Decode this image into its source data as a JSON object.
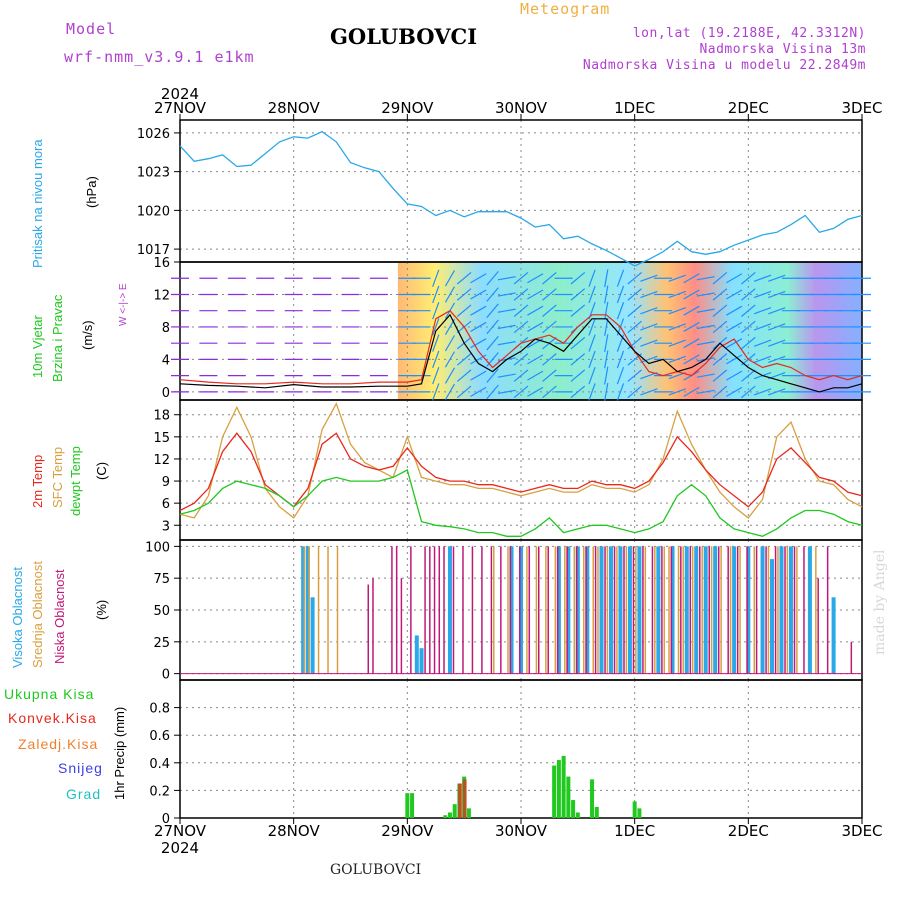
{
  "header": {
    "model_label": "Model",
    "model_name": "wrf-nmm_v3.9.1  e1km",
    "station": "GOLUBOVCI",
    "chart_kind": "Meteogram",
    "lonlat": "lon,lat (19.2188E, 42.3312N)",
    "elevation": "Nadmorska Visina 13m",
    "model_elevation": "Nadmorska Visina u modelu 22.2849m"
  },
  "time_axis": {
    "year": "2024",
    "labels": [
      "27NOV",
      "28NOV",
      "29NOV",
      "30NOV",
      "1DEC",
      "2DEC",
      "3DEC"
    ]
  },
  "footer": {
    "station": "GOLUBOVCI",
    "credit": "made by Angel"
  },
  "panel_labels": {
    "pressure": "Pritisak na nivou mora",
    "pressure_unit": "(hPa)",
    "wind_1": "10m Vjetar",
    "wind_2": "Brzina i Pravac",
    "wind_unit": "(m/s)",
    "wind_compass": "W <-|-> E",
    "temp_1": "2m Temp",
    "temp_2": "SFC Temp",
    "temp_3": "dewpt Temp",
    "temp_unit": "(C)",
    "cloud_1": "Visoka Oblacnost",
    "cloud_2": "Srednja Oblacnost",
    "cloud_3": "Niska Oblacnost",
    "cloud_unit": "(%)",
    "precip_1": "Ukupna Kisa",
    "precip_2": "Konvek.Kisa",
    "precip_3": "Zaledj.Kisa",
    "precip_4": "Snijeg",
    "precip_5": "Grad",
    "precip_unit": "1hr Precip (mm)"
  },
  "colors": {
    "pressure": "#2aa8e8",
    "wind_speed": "#000000",
    "wind_gust": "#e8281e",
    "temp_2m": "#e8281e",
    "temp_sfc": "#d8a040",
    "temp_dew": "#20c820",
    "cloud_high": "#2aa8e8",
    "cloud_mid": "#d8a040",
    "cloud_low": "#c01878",
    "precip_total": "#20c820",
    "precip_conv": "#e8281e",
    "precip_freezing": "#f08030",
    "precip_snow": "#4040e0",
    "precip_hail": "#20c0c0",
    "label_purple": "#b040d0"
  },
  "chart_data": [
    {
      "type": "line",
      "name": "pressure",
      "x": [
        0,
        3,
        6,
        9,
        12,
        15,
        18,
        21,
        24,
        27,
        30,
        33,
        36,
        39,
        42,
        45,
        48,
        51,
        54,
        57,
        60,
        63,
        66,
        69,
        72,
        75,
        78,
        81,
        84,
        87,
        90,
        93,
        96,
        99,
        102,
        105,
        108,
        111,
        114,
        117,
        120,
        123,
        126,
        129,
        132,
        135,
        138,
        141,
        144
      ],
      "values": [
        1025.0,
        1023.8,
        1024.0,
        1024.3,
        1023.4,
        1023.5,
        1024.4,
        1025.3,
        1025.7,
        1025.6,
        1026.1,
        1025.3,
        1023.7,
        1023.3,
        1023.0,
        1021.7,
        1020.5,
        1020.3,
        1019.6,
        1020.0,
        1019.5,
        1019.9,
        1019.9,
        1019.9,
        1019.4,
        1018.7,
        1018.9,
        1017.8,
        1018.0,
        1017.4,
        1016.9,
        1016.3,
        1015.7,
        1016.2,
        1016.8,
        1017.6,
        1016.8,
        1016.6,
        1016.8,
        1017.3,
        1017.7,
        1018.1,
        1018.3,
        1018.9,
        1019.6,
        1018.3,
        1018.6,
        1019.3,
        1019.6
      ],
      "xlim": [
        0,
        144
      ],
      "ylim": [
        1016,
        1027
      ],
      "yticks": [
        1017,
        1020,
        1023,
        1026
      ],
      "ylabel": "(hPa)"
    },
    {
      "type": "line",
      "name": "wind",
      "x": [
        0,
        6,
        12,
        18,
        24,
        30,
        36,
        42,
        48,
        51,
        54,
        57,
        60,
        63,
        66,
        69,
        72,
        75,
        78,
        81,
        84,
        87,
        90,
        93,
        96,
        99,
        102,
        105,
        108,
        111,
        114,
        117,
        120,
        123,
        126,
        129,
        132,
        135,
        138,
        141,
        144
      ],
      "series": [
        {
          "name": "speed",
          "values": [
            1.0,
            0.8,
            0.7,
            0.5,
            0.9,
            0.6,
            0.6,
            0.7,
            0.7,
            1.0,
            7.5,
            9.5,
            6.0,
            3.5,
            2.5,
            4.0,
            5.0,
            6.5,
            6.0,
            5.0,
            7.0,
            9.0,
            9.0,
            7.0,
            5.0,
            3.5,
            4.0,
            2.5,
            3.0,
            4.0,
            6.0,
            4.5,
            3.0,
            2.0,
            1.5,
            1.0,
            0.5,
            0.0,
            0.5,
            0.5,
            1.0
          ]
        },
        {
          "name": "gust",
          "values": [
            1.5,
            1.2,
            1.0,
            1.0,
            1.2,
            1.0,
            1.0,
            1.2,
            1.2,
            1.5,
            9.0,
            10.0,
            8.0,
            5.0,
            3.0,
            4.5,
            6.0,
            6.5,
            7.0,
            6.0,
            8.0,
            9.5,
            9.5,
            8.0,
            5.0,
            2.5,
            2.0,
            2.5,
            2.0,
            3.5,
            5.5,
            6.5,
            4.0,
            3.0,
            3.5,
            3.0,
            2.0,
            1.5,
            2.0,
            1.5,
            2.0
          ]
        }
      ],
      "direction_deg": [
        90,
        90,
        90,
        90,
        90,
        90,
        90,
        90,
        90,
        90,
        200,
        210,
        230,
        240,
        220,
        260,
        230,
        240,
        230,
        270,
        230,
        200,
        190,
        200,
        230,
        250,
        270,
        250,
        240,
        260,
        230,
        240,
        230,
        250,
        250,
        90,
        90,
        90,
        90,
        90,
        90
      ],
      "xlim": [
        0,
        144
      ],
      "ylim": [
        -1,
        16
      ],
      "yticks": [
        0,
        4,
        8,
        12,
        16
      ],
      "ylabel": "(m/s)"
    },
    {
      "type": "line",
      "name": "temperature",
      "x": [
        0,
        3,
        6,
        9,
        12,
        15,
        18,
        21,
        24,
        27,
        30,
        33,
        36,
        39,
        42,
        45,
        48,
        51,
        54,
        57,
        60,
        63,
        66,
        69,
        72,
        75,
        78,
        81,
        84,
        87,
        90,
        93,
        96,
        99,
        102,
        105,
        108,
        111,
        114,
        117,
        120,
        123,
        126,
        129,
        132,
        135,
        138,
        141,
        144
      ],
      "series": [
        {
          "name": "2m Temp",
          "values": [
            5.0,
            6.0,
            8.0,
            13.0,
            15.5,
            13.0,
            8.5,
            7.0,
            5.5,
            8.0,
            14.0,
            15.5,
            12.0,
            11.0,
            10.5,
            11.0,
            13.5,
            11.0,
            9.5,
            9.0,
            9.0,
            8.5,
            8.5,
            8.0,
            7.5,
            8.0,
            8.5,
            8.0,
            8.0,
            9.0,
            8.5,
            8.5,
            8.0,
            9.0,
            11.5,
            15.0,
            13.0,
            10.5,
            8.5,
            7.0,
            5.5,
            7.5,
            12.0,
            13.5,
            11.5,
            9.5,
            9.0,
            7.5,
            7.0
          ]
        },
        {
          "name": "SFC Temp",
          "values": [
            4.5,
            4.0,
            7.0,
            15.0,
            19.0,
            15.0,
            8.0,
            5.5,
            4.0,
            7.0,
            16.0,
            19.5,
            14.0,
            11.5,
            10.5,
            9.5,
            15.0,
            9.5,
            9.0,
            8.5,
            8.5,
            8.0,
            8.0,
            7.5,
            7.0,
            7.5,
            8.0,
            7.5,
            7.5,
            8.5,
            8.0,
            8.0,
            7.5,
            8.5,
            12.0,
            18.5,
            14.0,
            10.5,
            7.5,
            5.5,
            4.0,
            6.5,
            15.0,
            17.0,
            12.0,
            9.0,
            8.5,
            6.5,
            5.5
          ]
        },
        {
          "name": "dewpt Temp",
          "values": [
            4.5,
            5.0,
            6.0,
            8.0,
            9.0,
            8.5,
            8.0,
            7.0,
            5.5,
            7.0,
            9.0,
            9.5,
            9.0,
            9.0,
            9.0,
            9.5,
            10.5,
            3.5,
            3.0,
            2.8,
            2.5,
            2.0,
            2.0,
            1.5,
            1.5,
            2.5,
            4.0,
            2.0,
            2.5,
            3.0,
            3.0,
            2.5,
            2.0,
            2.5,
            3.5,
            7.0,
            8.5,
            7.0,
            4.0,
            2.5,
            2.0,
            1.5,
            2.5,
            4.0,
            5.0,
            5.0,
            4.5,
            3.5,
            3.0
          ]
        }
      ],
      "xlim": [
        0,
        144
      ],
      "ylim": [
        1,
        20
      ],
      "yticks": [
        3,
        6,
        9,
        12,
        15,
        18
      ],
      "ylabel": "(C)"
    },
    {
      "type": "bar",
      "name": "cloud",
      "series": [
        {
          "name": "Visoka Oblacnost",
          "x": [
            26,
            27,
            28,
            50,
            51,
            57,
            70,
            72,
            80,
            82,
            84,
            86,
            89,
            91,
            93,
            95,
            97,
            101,
            104,
            107,
            109,
            111,
            113,
            117,
            120,
            123,
            125,
            127,
            129,
            133,
            138
          ],
          "values": [
            100,
            100,
            60,
            30,
            20,
            100,
            100,
            100,
            100,
            100,
            100,
            100,
            100,
            100,
            100,
            100,
            100,
            100,
            100,
            100,
            100,
            100,
            100,
            100,
            100,
            100,
            90,
            100,
            100,
            100,
            60
          ]
        },
        {
          "name": "Srednja Oblacnost",
          "x": [
            26,
            27,
            29,
            31,
            33,
            66,
            69,
            73,
            75,
            77,
            79,
            81,
            83,
            85,
            87,
            88,
            90,
            92,
            94,
            96,
            98,
            100,
            102,
            103,
            105,
            106,
            108,
            110,
            112,
            114,
            116,
            118,
            121,
            124,
            126,
            128,
            130,
            134
          ],
          "values": [
            100,
            100,
            100,
            100,
            100,
            100,
            100,
            100,
            100,
            100,
            100,
            100,
            100,
            100,
            100,
            100,
            100,
            100,
            100,
            100,
            100,
            100,
            100,
            100,
            100,
            100,
            100,
            100,
            100,
            100,
            100,
            100,
            100,
            100,
            100,
            100,
            100,
            100
          ]
        },
        {
          "name": "Niska Oblacnost",
          "x": [
            40,
            41,
            45,
            46,
            47,
            49,
            52,
            53,
            54,
            55,
            56,
            58,
            60,
            62,
            64,
            66,
            68,
            70,
            72,
            74,
            76,
            78,
            80,
            82,
            84,
            86,
            88,
            90,
            92,
            94,
            96,
            98,
            100,
            102,
            104,
            106,
            108,
            110,
            112,
            114,
            116,
            118,
            120,
            122,
            124,
            126,
            128,
            130,
            132,
            135,
            137,
            142
          ],
          "values": [
            70,
            75,
            100,
            100,
            75,
            100,
            100,
            100,
            100,
            100,
            100,
            100,
            100,
            100,
            100,
            100,
            100,
            100,
            100,
            100,
            100,
            100,
            100,
            100,
            100,
            100,
            100,
            100,
            100,
            100,
            100,
            100,
            100,
            100,
            100,
            100,
            100,
            100,
            100,
            100,
            100,
            100,
            100,
            100,
            100,
            100,
            100,
            100,
            100,
            75,
            100,
            25
          ]
        }
      ],
      "xlim": [
        0,
        144
      ],
      "ylim": [
        -5,
        105
      ],
      "yticks": [
        0,
        25,
        50,
        75,
        100
      ],
      "ylabel": "(%)"
    },
    {
      "type": "bar",
      "name": "precipitation",
      "series": [
        {
          "name": "Ukupna Kisa",
          "x": [
            48,
            49,
            56,
            57,
            58,
            59,
            60,
            61,
            79,
            80,
            81,
            82,
            83,
            84,
            87,
            88,
            96,
            97
          ],
          "values": [
            0.18,
            0.18,
            0.02,
            0.04,
            0.1,
            0.25,
            0.3,
            0.07,
            0.38,
            0.42,
            0.45,
            0.3,
            0.13,
            0.04,
            0.28,
            0.08,
            0.12,
            0.07
          ]
        },
        {
          "name": "Konvek.Kisa",
          "x": [
            59,
            60
          ],
          "values": [
            0.25,
            0.28
          ]
        }
      ],
      "xlim": [
        0,
        144
      ],
      "ylim": [
        0,
        1.0
      ],
      "yticks": [
        0,
        0.2,
        0.4,
        0.6,
        0.8
      ],
      "ylabel": "1hr Precip (mm)"
    }
  ]
}
